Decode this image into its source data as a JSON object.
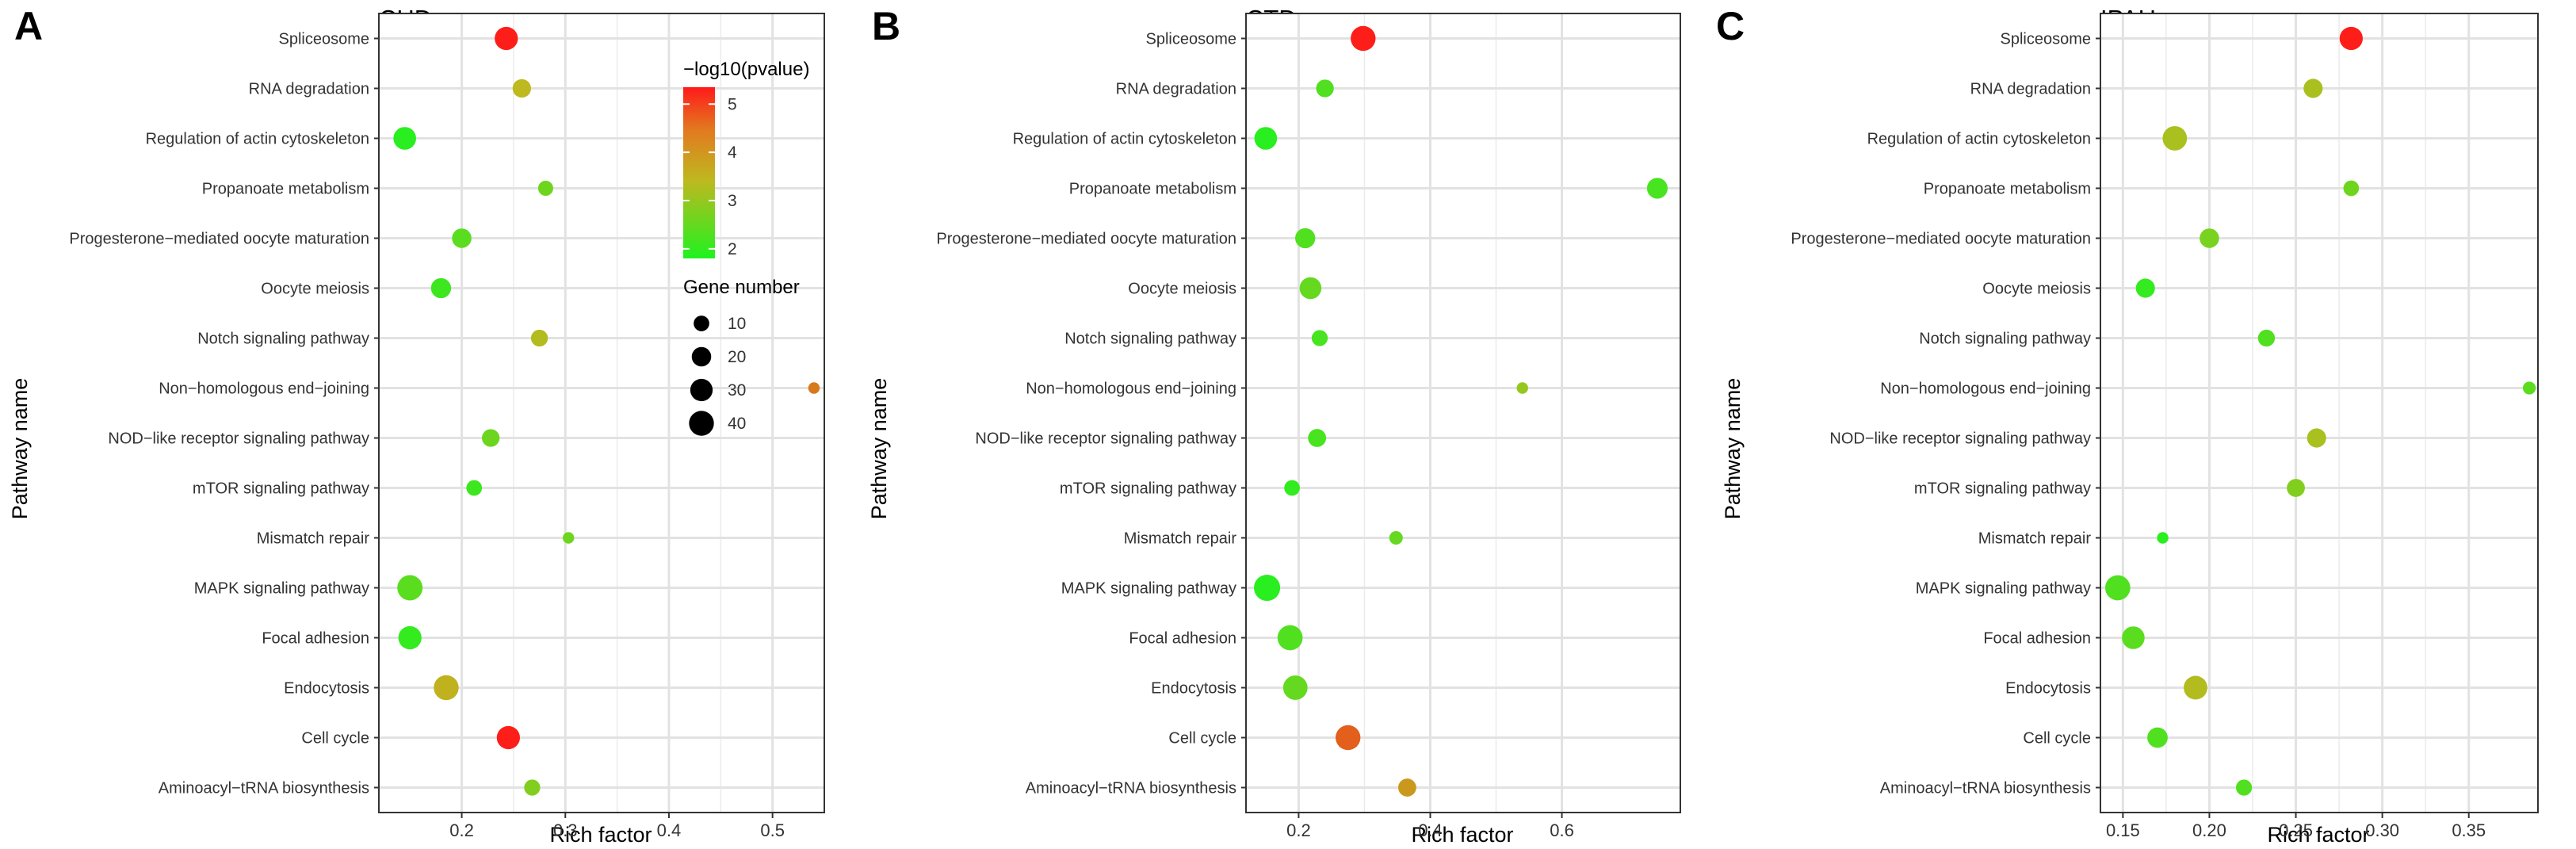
{
  "figure": {
    "y_axis_title": "Pathway name",
    "x_axis_title": "Rich factor"
  },
  "legend": {
    "color_title": "−log10(pvalue)",
    "color_ticks": [
      5,
      4,
      3,
      2
    ],
    "color_range": [
      1.8,
      5.35
    ],
    "size_title": "Gene number",
    "size_ticks": [
      10,
      20,
      30,
      40
    ]
  },
  "colors": {
    "low": "#1ff21f",
    "mid": "#bdb91f",
    "high": "#ff1a1a",
    "grid": "#ebebeb",
    "frame": "#333333"
  },
  "chart_data": [
    {
      "type": "scatter",
      "panel_letter": "A",
      "title": "CHD",
      "xlabel": "Rich factor",
      "ylabel": "Pathway name",
      "xlim": [
        0.12,
        0.55
      ],
      "xticks": [
        0.2,
        0.3,
        0.4,
        0.5
      ],
      "xtick_labels": [
        "0.2",
        "0.3",
        "0.4",
        "0.5"
      ],
      "categories": [
        "Spliceosome",
        "RNA degradation",
        "Regulation of actin cytoskeleton",
        "Propanoate metabolism",
        "Progesterone−mediated oocyte maturation",
        "Oocyte meiosis",
        "Notch signaling pathway",
        "Non−homologous end−joining",
        "NOD−like receptor signaling pathway",
        "mTOR signaling pathway",
        "Mismatch repair",
        "MAPK signaling pathway",
        "Focal adhesion",
        "Endocytosis",
        "Cell cycle",
        "Aminoacyl−tRNA biosynthesis"
      ],
      "points": [
        {
          "pathway": "Spliceosome",
          "rich_factor": 0.243,
          "gene_number": 33,
          "neg_log10_p": 5.3
        },
        {
          "pathway": "RNA degradation",
          "rich_factor": 0.258,
          "gene_number": 17,
          "neg_log10_p": 3.4
        },
        {
          "pathway": "Regulation of actin cytoskeleton",
          "rich_factor": 0.145,
          "gene_number": 31,
          "neg_log10_p": 1.9
        },
        {
          "pathway": "Propanoate metabolism",
          "rich_factor": 0.281,
          "gene_number": 9,
          "neg_log10_p": 2.6
        },
        {
          "pathway": "Progesterone−mediated oocyte maturation",
          "rich_factor": 0.2,
          "gene_number": 20,
          "neg_log10_p": 2.4
        },
        {
          "pathway": "Oocyte meiosis",
          "rich_factor": 0.18,
          "gene_number": 22,
          "neg_log10_p": 2.1
        },
        {
          "pathway": "Notch signaling pathway",
          "rich_factor": 0.275,
          "gene_number": 13,
          "neg_log10_p": 3.3
        },
        {
          "pathway": "Non−homologous end−joining",
          "rich_factor": 0.54,
          "gene_number": 3,
          "neg_log10_p": 4.2
        },
        {
          "pathway": "NOD−like receptor signaling pathway",
          "rich_factor": 0.228,
          "gene_number": 15,
          "neg_log10_p": 2.6
        },
        {
          "pathway": "mTOR signaling pathway",
          "rich_factor": 0.212,
          "gene_number": 10,
          "neg_log10_p": 2.1
        },
        {
          "pathway": "Mismatch repair",
          "rich_factor": 0.303,
          "gene_number": 3,
          "neg_log10_p": 2.6
        },
        {
          "pathway": "MAPK signaling pathway",
          "rich_factor": 0.15,
          "gene_number": 42,
          "neg_log10_p": 2.4
        },
        {
          "pathway": "Focal adhesion",
          "rich_factor": 0.15,
          "gene_number": 33,
          "neg_log10_p": 2.0
        },
        {
          "pathway": "Endocytosis",
          "rich_factor": 0.185,
          "gene_number": 40,
          "neg_log10_p": 3.5
        },
        {
          "pathway": "Cell cycle",
          "rich_factor": 0.245,
          "gene_number": 33,
          "neg_log10_p": 5.3
        },
        {
          "pathway": "Aminoacyl−tRNA biosynthesis",
          "rich_factor": 0.268,
          "gene_number": 11,
          "neg_log10_p": 2.8
        }
      ]
    },
    {
      "type": "scatter",
      "panel_letter": "B",
      "title": "CTD",
      "xlabel": "Rich factor",
      "ylabel": "Pathway name",
      "xlim": [
        0.12,
        0.78
      ],
      "xticks": [
        0.2,
        0.4,
        0.6
      ],
      "xtick_labels": [
        "0.2",
        "0.4",
        "0.6"
      ],
      "categories": [
        "Spliceosome",
        "RNA degradation",
        "Regulation of actin cytoskeleton",
        "Propanoate metabolism",
        "Progesterone−mediated oocyte maturation",
        "Oocyte meiosis",
        "Notch signaling pathway",
        "Non−homologous end−joining",
        "NOD−like receptor signaling pathway",
        "mTOR signaling pathway",
        "Mismatch repair",
        "MAPK signaling pathway",
        "Focal adhesion",
        "Endocytosis",
        "Cell cycle",
        "Aminoacyl−tRNA biosynthesis"
      ],
      "points": [
        {
          "pathway": "Spliceosome",
          "rich_factor": 0.298,
          "gene_number": 40,
          "neg_log10_p": 5.3
        },
        {
          "pathway": "RNA degradation",
          "rich_factor": 0.24,
          "gene_number": 15,
          "neg_log10_p": 2.3
        },
        {
          "pathway": "Regulation of actin cytoskeleton",
          "rich_factor": 0.15,
          "gene_number": 31,
          "neg_log10_p": 1.9
        },
        {
          "pathway": "Propanoate metabolism",
          "rich_factor": 0.745,
          "gene_number": 24,
          "neg_log10_p": 2.2
        },
        {
          "pathway": "Progesterone−mediated oocyte maturation",
          "rich_factor": 0.21,
          "gene_number": 22,
          "neg_log10_p": 2.3
        },
        {
          "pathway": "Oocyte meiosis",
          "rich_factor": 0.218,
          "gene_number": 28,
          "neg_log10_p": 2.5
        },
        {
          "pathway": "Notch signaling pathway",
          "rich_factor": 0.232,
          "gene_number": 11,
          "neg_log10_p": 2.2
        },
        {
          "pathway": "Non−homologous end−joining",
          "rich_factor": 0.54,
          "gene_number": 3,
          "neg_log10_p": 3.0
        },
        {
          "pathway": "NOD−like receptor signaling pathway",
          "rich_factor": 0.228,
          "gene_number": 16,
          "neg_log10_p": 2.2
        },
        {
          "pathway": "mTOR signaling pathway",
          "rich_factor": 0.19,
          "gene_number": 10,
          "neg_log10_p": 2.0
        },
        {
          "pathway": "Mismatch repair",
          "rich_factor": 0.348,
          "gene_number": 6,
          "neg_log10_p": 2.5
        },
        {
          "pathway": "MAPK signaling pathway",
          "rich_factor": 0.152,
          "gene_number": 46,
          "neg_log10_p": 1.9
        },
        {
          "pathway": "Focal adhesion",
          "rich_factor": 0.187,
          "gene_number": 41,
          "neg_log10_p": 2.3
        },
        {
          "pathway": "Endocytosis",
          "rich_factor": 0.195,
          "gene_number": 38,
          "neg_log10_p": 2.5
        },
        {
          "pathway": "Cell cycle",
          "rich_factor": 0.275,
          "gene_number": 40,
          "neg_log10_p": 4.5
        },
        {
          "pathway": "Aminoacyl−tRNA biosynthesis",
          "rich_factor": 0.365,
          "gene_number": 16,
          "neg_log10_p": 3.8
        }
      ]
    },
    {
      "type": "scatter",
      "panel_letter": "C",
      "title": "IPAH",
      "xlabel": "Rich factor",
      "ylabel": "Pathway name",
      "xlim": [
        0.137,
        0.39
      ],
      "xticks": [
        0.15,
        0.2,
        0.25,
        0.3,
        0.35
      ],
      "xtick_labels": [
        "0.15",
        "0.20",
        "0.25",
        "0.30",
        "0.35"
      ],
      "categories": [
        "Spliceosome",
        "RNA degradation",
        "Regulation of actin cytoskeleton",
        "Propanoate metabolism",
        "Progesterone−mediated oocyte maturation",
        "Oocyte meiosis",
        "Notch signaling pathway",
        "Non−homologous end−joining",
        "NOD−like receptor signaling pathway",
        "mTOR signaling pathway",
        "Mismatch repair",
        "MAPK signaling pathway",
        "Focal adhesion",
        "Endocytosis",
        "Cell cycle",
        "Aminoacyl−tRNA biosynthesis"
      ],
      "points": [
        {
          "pathway": "Spliceosome",
          "rich_factor": 0.282,
          "gene_number": 33,
          "neg_log10_p": 5.3
        },
        {
          "pathway": "RNA degradation",
          "rich_factor": 0.26,
          "gene_number": 19,
          "neg_log10_p": 3.2
        },
        {
          "pathway": "Regulation of actin cytoskeleton",
          "rich_factor": 0.18,
          "gene_number": 38,
          "neg_log10_p": 3.2
        },
        {
          "pathway": "Propanoate metabolism",
          "rich_factor": 0.282,
          "gene_number": 10,
          "neg_log10_p": 2.6
        },
        {
          "pathway": "Progesterone−mediated oocyte maturation",
          "rich_factor": 0.2,
          "gene_number": 20,
          "neg_log10_p": 2.7
        },
        {
          "pathway": "Oocyte meiosis",
          "rich_factor": 0.163,
          "gene_number": 19,
          "neg_log10_p": 2.0
        },
        {
          "pathway": "Notch signaling pathway",
          "rich_factor": 0.233,
          "gene_number": 13,
          "neg_log10_p": 2.3
        },
        {
          "pathway": "Non−homologous end−joining",
          "rich_factor": 0.385,
          "gene_number": 5,
          "neg_log10_p": 2.4
        },
        {
          "pathway": "NOD−like receptor signaling pathway",
          "rich_factor": 0.262,
          "gene_number": 19,
          "neg_log10_p": 3.2
        },
        {
          "pathway": "mTOR signaling pathway",
          "rich_factor": 0.25,
          "gene_number": 16,
          "neg_log10_p": 2.8
        },
        {
          "pathway": "Mismatch repair",
          "rich_factor": 0.173,
          "gene_number": 3,
          "neg_log10_p": 1.9
        },
        {
          "pathway": "MAPK signaling pathway",
          "rich_factor": 0.147,
          "gene_number": 41,
          "neg_log10_p": 2.3
        },
        {
          "pathway": "Focal adhesion",
          "rich_factor": 0.156,
          "gene_number": 31,
          "neg_log10_p": 2.4
        },
        {
          "pathway": "Endocytosis",
          "rich_factor": 0.192,
          "gene_number": 35,
          "neg_log10_p": 3.3
        },
        {
          "pathway": "Cell cycle",
          "rich_factor": 0.17,
          "gene_number": 23,
          "neg_log10_p": 2.3
        },
        {
          "pathway": "Aminoacyl−tRNA biosynthesis",
          "rich_factor": 0.22,
          "gene_number": 11,
          "neg_log10_p": 2.3
        }
      ]
    }
  ]
}
